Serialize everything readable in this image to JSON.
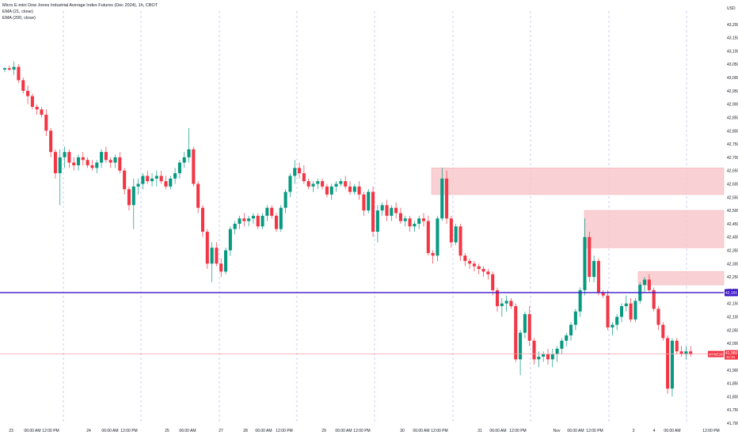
{
  "header": {
    "title": "Micro E-mini Dow Jones Industrial Average Index Futures (Dec 2024), 1h, CBOT",
    "indicator_1": "EMA (21, close)",
    "indicator_2": "EMA (200, close)"
  },
  "currency": "USD",
  "colors": {
    "up": "#089981",
    "down": "#f23645",
    "zone_fill": "#f7c6c9",
    "zone_edge": "#f1a7ac",
    "level_line": "#3d17c9",
    "price_line": "#f6a1a8"
  },
  "chart_data": {
    "type": "candlestick",
    "ylim": [
      41700,
      43250
    ],
    "y_ticks": [
      43200,
      43150,
      43100,
      43050,
      43000,
      42950,
      42900,
      42850,
      42800,
      42750,
      42700,
      42650,
      42600,
      42550,
      42500,
      42450,
      42400,
      42350,
      42300,
      42250,
      42200,
      42150,
      42100,
      42050,
      42000,
      41950,
      41900,
      41850,
      41800,
      41750,
      41700
    ],
    "y_tick_labels": [
      "43,200",
      "43,150",
      "43,100",
      "43,050",
      "43,000",
      "42,950",
      "42,900",
      "42,850",
      "42,800",
      "42,750",
      "42,700",
      "42,650",
      "42,600",
      "42,550",
      "42,500",
      "42,450",
      "42,400",
      "42,350",
      "42,300",
      "42,250",
      "42,200",
      "42,150",
      "42,100",
      "42,050",
      "42,000",
      "41,950",
      "41,900",
      "41,850",
      "41,800",
      "41,750",
      "41,700"
    ],
    "x_labels": [
      "23",
      "06:00 AM",
      "12:00 PM",
      "24",
      "06:00 AM",
      "12:00 PM",
      "25",
      "06:00 AM",
      "27",
      "28",
      "06:00 AM",
      "12:00 PM",
      "29",
      "06:00 AM",
      "12:00 PM",
      "30",
      "06:00 AM",
      "12:00 PM",
      "31",
      "06:00 AM",
      "12:00 PM",
      "Nov",
      "06:00 AM",
      "12:00 PM",
      "3",
      "4",
      "06:00 AM",
      "12:00 PM",
      "5"
    ],
    "level_line": {
      "value": 42191,
      "label": "42,191"
    },
    "current_price": {
      "label_symbol": "MYMZ2024",
      "value": "41,960",
      "countdown": "41:31",
      "value_num": 41960
    },
    "zones": [
      {
        "top": 42660,
        "bottom": 42560
      },
      {
        "top": 42500,
        "bottom": 42360
      },
      {
        "top": 42270,
        "bottom": 42220
      }
    ],
    "candles": [
      [
        43030,
        43040,
        43020,
        43035
      ],
      [
        43035,
        43045,
        43025,
        43030
      ],
      [
        43030,
        43060,
        43010,
        43040
      ],
      [
        43040,
        43050,
        42980,
        42990
      ],
      [
        42990,
        43000,
        42940,
        42950
      ],
      [
        42950,
        42970,
        42900,
        42930
      ],
      [
        42930,
        42940,
        42880,
        42890
      ],
      [
        42890,
        42900,
        42860,
        42880
      ],
      [
        42880,
        42890,
        42850,
        42860
      ],
      [
        42860,
        42880,
        42780,
        42800
      ],
      [
        42800,
        42810,
        42700,
        42720
      ],
      [
        42720,
        42730,
        42620,
        42640
      ],
      [
        42640,
        42730,
        42520,
        42700
      ],
      [
        42700,
        42740,
        42660,
        42720
      ],
      [
        42720,
        42730,
        42660,
        42680
      ],
      [
        42680,
        42700,
        42650,
        42670
      ],
      [
        42670,
        42710,
        42650,
        42700
      ],
      [
        42700,
        42720,
        42670,
        42690
      ],
      [
        42690,
        42700,
        42660,
        42670
      ],
      [
        42670,
        42690,
        42650,
        42660
      ],
      [
        42660,
        42690,
        42640,
        42680
      ],
      [
        42680,
        42730,
        42660,
        42720
      ],
      [
        42720,
        42740,
        42680,
        42690
      ],
      [
        42690,
        42700,
        42660,
        42680
      ],
      [
        42680,
        42710,
        42660,
        42700
      ],
      [
        42700,
        42720,
        42640,
        42650
      ],
      [
        42650,
        42660,
        42560,
        42580
      ],
      [
        42580,
        42590,
        42500,
        42520
      ],
      [
        42520,
        42620,
        42430,
        42590
      ],
      [
        42590,
        42620,
        42560,
        42600
      ],
      [
        42600,
        42640,
        42580,
        42630
      ],
      [
        42630,
        42650,
        42600,
        42610
      ],
      [
        42610,
        42640,
        42590,
        42620
      ],
      [
        42620,
        42650,
        42590,
        42630
      ],
      [
        42630,
        42650,
        42600,
        42610
      ],
      [
        42610,
        42630,
        42580,
        42590
      ],
      [
        42590,
        42630,
        42580,
        42620
      ],
      [
        42620,
        42660,
        42600,
        42640
      ],
      [
        42640,
        42690,
        42620,
        42680
      ],
      [
        42680,
        42720,
        42660,
        42700
      ],
      [
        42700,
        42810,
        42680,
        42730
      ],
      [
        42730,
        42740,
        42590,
        42600
      ],
      [
        42600,
        42610,
        42490,
        42510
      ],
      [
        42510,
        42520,
        42400,
        42420
      ],
      [
        42420,
        42430,
        42280,
        42300
      ],
      [
        42300,
        42380,
        42230,
        42360
      ],
      [
        42360,
        42380,
        42290,
        42300
      ],
      [
        42300,
        42320,
        42250,
        42270
      ],
      [
        42270,
        42360,
        42260,
        42350
      ],
      [
        42350,
        42440,
        42330,
        42430
      ],
      [
        42430,
        42460,
        42410,
        42450
      ],
      [
        42450,
        42480,
        42430,
        42470
      ],
      [
        42470,
        42490,
        42440,
        42460
      ],
      [
        42460,
        42480,
        42440,
        42470
      ],
      [
        42470,
        42490,
        42450,
        42480
      ],
      [
        42480,
        42490,
        42430,
        42440
      ],
      [
        42440,
        42490,
        42430,
        42480
      ],
      [
        42480,
        42520,
        42460,
        42510
      ],
      [
        42510,
        42520,
        42470,
        42480
      ],
      [
        42480,
        42490,
        42420,
        42430
      ],
      [
        42430,
        42520,
        42420,
        42510
      ],
      [
        42510,
        42580,
        42490,
        42570
      ],
      [
        42570,
        42640,
        42550,
        42630
      ],
      [
        42630,
        42690,
        42600,
        42660
      ],
      [
        42660,
        42680,
        42620,
        42640
      ],
      [
        42640,
        42670,
        42600,
        42610
      ],
      [
        42610,
        42620,
        42580,
        42590
      ],
      [
        42590,
        42610,
        42570,
        42600
      ],
      [
        42600,
        42620,
        42580,
        42610
      ],
      [
        42610,
        42620,
        42580,
        42590
      ],
      [
        42590,
        42600,
        42550,
        42560
      ],
      [
        42560,
        42600,
        42540,
        42590
      ],
      [
        42590,
        42610,
        42570,
        42600
      ],
      [
        42600,
        42620,
        42590,
        42610
      ],
      [
        42610,
        42630,
        42580,
        42590
      ],
      [
        42590,
        42610,
        42560,
        42570
      ],
      [
        42570,
        42600,
        42560,
        42590
      ],
      [
        42590,
        42610,
        42540,
        42560
      ],
      [
        42560,
        42570,
        42480,
        42500
      ],
      [
        42500,
        42580,
        42490,
        42570
      ],
      [
        42570,
        42590,
        42400,
        42420
      ],
      [
        42420,
        42520,
        42380,
        42500
      ],
      [
        42500,
        42530,
        42480,
        42520
      ],
      [
        42520,
        42540,
        42460,
        42480
      ],
      [
        42480,
        42520,
        42460,
        42510
      ],
      [
        42510,
        42530,
        42470,
        42490
      ],
      [
        42490,
        42510,
        42450,
        42460
      ],
      [
        42460,
        42480,
        42440,
        42470
      ],
      [
        42470,
        42480,
        42420,
        42440
      ],
      [
        42440,
        42460,
        42420,
        42450
      ],
      [
        42450,
        42480,
        42430,
        42470
      ],
      [
        42470,
        42490,
        42440,
        42460
      ],
      [
        42460,
        42480,
        42330,
        42340
      ],
      [
        42340,
        42350,
        42300,
        42330
      ],
      [
        42330,
        42480,
        42310,
        42470
      ],
      [
        42470,
        42660,
        42460,
        42620
      ],
      [
        42620,
        42650,
        42450,
        42470
      ],
      [
        42470,
        42480,
        42360,
        42380
      ],
      [
        42380,
        42450,
        42370,
        42440
      ],
      [
        42440,
        42450,
        42310,
        42330
      ],
      [
        42330,
        42340,
        42290,
        42310
      ],
      [
        42310,
        42320,
        42280,
        42300
      ],
      [
        42300,
        42310,
        42270,
        42290
      ],
      [
        42290,
        42300,
        42260,
        42280
      ],
      [
        42280,
        42290,
        42250,
        42270
      ],
      [
        42270,
        42280,
        42240,
        42260
      ],
      [
        42260,
        42270,
        42180,
        42200
      ],
      [
        42200,
        42210,
        42120,
        42140
      ],
      [
        42140,
        42170,
        42100,
        42150
      ],
      [
        42150,
        42180,
        42120,
        42160
      ],
      [
        42160,
        42170,
        42130,
        42140
      ],
      [
        42140,
        42150,
        41930,
        41940
      ],
      [
        41940,
        42050,
        41880,
        42040
      ],
      [
        42040,
        42120,
        42020,
        42110
      ],
      [
        42110,
        42140,
        41990,
        42010
      ],
      [
        42010,
        42020,
        41920,
        41940
      ],
      [
        41940,
        41970,
        41910,
        41950
      ],
      [
        41950,
        41970,
        41930,
        41960
      ],
      [
        41960,
        41980,
        41920,
        41940
      ],
      [
        41940,
        41980,
        41910,
        41960
      ],
      [
        41960,
        41990,
        41930,
        41980
      ],
      [
        41980,
        42020,
        41960,
        42010
      ],
      [
        42010,
        42040,
        41990,
        42030
      ],
      [
        42030,
        42080,
        42010,
        42070
      ],
      [
        42070,
        42130,
        42050,
        42120
      ],
      [
        42120,
        42210,
        42100,
        42200
      ],
      [
        42200,
        42470,
        42180,
        42400
      ],
      [
        42400,
        42420,
        42230,
        42250
      ],
      [
        42250,
        42330,
        42230,
        42310
      ],
      [
        42310,
        42320,
        42180,
        42190
      ],
      [
        42190,
        42200,
        42170,
        42180
      ],
      [
        42180,
        42200,
        42050,
        42060
      ],
      [
        42060,
        42080,
        42030,
        42070
      ],
      [
        42070,
        42110,
        42050,
        42100
      ],
      [
        42100,
        42150,
        42080,
        42140
      ],
      [
        42140,
        42180,
        42120,
        42150
      ],
      [
        42150,
        42170,
        42080,
        42090
      ],
      [
        42090,
        42170,
        42080,
        42160
      ],
      [
        42160,
        42230,
        42150,
        42220
      ],
      [
        42220,
        42250,
        42190,
        42240
      ],
      [
        42240,
        42260,
        42190,
        42200
      ],
      [
        42200,
        42210,
        42120,
        42130
      ],
      [
        42130,
        42140,
        42050,
        42070
      ],
      [
        42070,
        42080,
        42010,
        42020
      ],
      [
        42020,
        42030,
        41810,
        41830
      ],
      [
        41830,
        42020,
        41800,
        42010
      ],
      [
        42010,
        42020,
        41960,
        41970
      ],
      [
        41970,
        41990,
        41950,
        41960
      ],
      [
        41960,
        41990,
        41940,
        41970
      ],
      [
        41970,
        41990,
        41950,
        41960
      ]
    ]
  }
}
